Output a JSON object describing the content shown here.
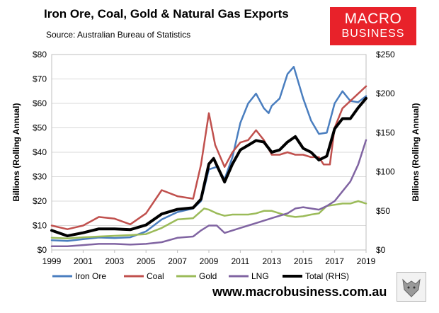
{
  "header": {
    "title": "Iron Ore, Coal, Gold & Natural Gas Exports",
    "source": "Source: Australian Bureau of Statistics",
    "logo_line1": "MACRO",
    "logo_line2": "BUSINESS",
    "website": "www.macrobusiness.com.au"
  },
  "colors": {
    "iron_ore": "#4a7ebf",
    "coal": "#c0504d",
    "gold": "#9bbb59",
    "lng": "#8064a2",
    "total": "#000000",
    "logo": "#e8222a"
  },
  "chart_data": {
    "type": "line",
    "title": "Iron Ore, Coal, Gold & Natural Gas Exports",
    "xlabel": "",
    "ylabel": "Billions (Rolling Annual)",
    "y2label": "Billions (Rolling Annual)",
    "xlim": [
      1999,
      2019
    ],
    "ylim": [
      0,
      80
    ],
    "y2lim": [
      0,
      250
    ],
    "x_ticks": [
      "1999",
      "2001",
      "2003",
      "2005",
      "2007",
      "2009",
      "2011",
      "2013",
      "2015",
      "2017",
      "2019"
    ],
    "y_ticks": [
      "$0",
      "$10",
      "$20",
      "$30",
      "$40",
      "$50",
      "$60",
      "$70",
      "$80"
    ],
    "y2_ticks": [
      "$0",
      "$50",
      "$100",
      "$150",
      "$200",
      "$250"
    ],
    "grid": true,
    "legend_position": "bottom",
    "series": [
      {
        "name": "Iron Ore",
        "axis": "left",
        "points": [
          [
            1999,
            4
          ],
          [
            2000,
            3.7
          ],
          [
            2001,
            4.4
          ],
          [
            2002,
            5.1
          ],
          [
            2003,
            4.9
          ],
          [
            2004,
            5.2
          ],
          [
            2005,
            7.6
          ],
          [
            2006,
            12.5
          ],
          [
            2007,
            15.5
          ],
          [
            2008,
            17
          ],
          [
            2008.5,
            20
          ],
          [
            2009,
            33
          ],
          [
            2009.5,
            34
          ],
          [
            2010,
            29
          ],
          [
            2010.5,
            38
          ],
          [
            2011,
            52
          ],
          [
            2011.5,
            60
          ],
          [
            2012,
            64
          ],
          [
            2012.5,
            58
          ],
          [
            2012.8,
            56
          ],
          [
            2013,
            59
          ],
          [
            2013.5,
            62
          ],
          [
            2014,
            72
          ],
          [
            2014.4,
            75
          ],
          [
            2015,
            62
          ],
          [
            2015.5,
            53
          ],
          [
            2016,
            47.5
          ],
          [
            2016.5,
            48
          ],
          [
            2017,
            60
          ],
          [
            2017.5,
            65
          ],
          [
            2018,
            61
          ],
          [
            2018.5,
            60.5
          ],
          [
            2019,
            63
          ]
        ]
      },
      {
        "name": "Coal",
        "axis": "left",
        "points": [
          [
            1999,
            10
          ],
          [
            2000,
            8.5
          ],
          [
            2001,
            10
          ],
          [
            2002,
            13.5
          ],
          [
            2003,
            12.8
          ],
          [
            2004,
            10.5
          ],
          [
            2005,
            15
          ],
          [
            2006,
            24.5
          ],
          [
            2007,
            22
          ],
          [
            2008,
            21
          ],
          [
            2008.5,
            35
          ],
          [
            2009,
            56
          ],
          [
            2009.4,
            43
          ],
          [
            2010,
            34
          ],
          [
            2010.5,
            40
          ],
          [
            2011,
            44
          ],
          [
            2011.5,
            45
          ],
          [
            2012,
            49
          ],
          [
            2012.5,
            45
          ],
          [
            2013,
            39
          ],
          [
            2013.5,
            39
          ],
          [
            2014,
            40
          ],
          [
            2014.5,
            39
          ],
          [
            2015,
            39
          ],
          [
            2015.5,
            38
          ],
          [
            2016,
            38
          ],
          [
            2016.3,
            35
          ],
          [
            2016.7,
            35
          ],
          [
            2017,
            50
          ],
          [
            2017.5,
            58
          ],
          [
            2018,
            61
          ],
          [
            2018.5,
            64
          ],
          [
            2019,
            67
          ]
        ]
      },
      {
        "name": "Gold",
        "axis": "left",
        "points": [
          [
            1999,
            5
          ],
          [
            2000,
            4.7
          ],
          [
            2001,
            5.2
          ],
          [
            2002,
            5.5
          ],
          [
            2003,
            5.8
          ],
          [
            2004,
            6.1
          ],
          [
            2005,
            6.5
          ],
          [
            2006,
            9
          ],
          [
            2007,
            12.5
          ],
          [
            2008,
            13
          ],
          [
            2008.7,
            17
          ],
          [
            2009,
            16.5
          ],
          [
            2009.5,
            15
          ],
          [
            2010,
            14
          ],
          [
            2010.5,
            14.5
          ],
          [
            2011,
            14.5
          ],
          [
            2011.5,
            14.5
          ],
          [
            2012,
            15
          ],
          [
            2012.5,
            16
          ],
          [
            2013,
            16
          ],
          [
            2013.5,
            15
          ],
          [
            2014,
            14
          ],
          [
            2014.5,
            13.5
          ],
          [
            2015,
            13.8
          ],
          [
            2015.5,
            14.5
          ],
          [
            2016,
            15
          ],
          [
            2016.5,
            18
          ],
          [
            2017,
            18.5
          ],
          [
            2017.5,
            19
          ],
          [
            2018,
            19
          ],
          [
            2018.5,
            20
          ],
          [
            2019,
            19
          ]
        ]
      },
      {
        "name": "LNG",
        "axis": "left",
        "points": [
          [
            1999,
            1.5
          ],
          [
            2000,
            1.5
          ],
          [
            2001,
            2
          ],
          [
            2002,
            2.5
          ],
          [
            2003,
            2.5
          ],
          [
            2004,
            2.2
          ],
          [
            2005,
            2.5
          ],
          [
            2006,
            3.2
          ],
          [
            2007,
            5
          ],
          [
            2008,
            5.5
          ],
          [
            2008.5,
            8
          ],
          [
            2009,
            10
          ],
          [
            2009.5,
            10
          ],
          [
            2010,
            7
          ],
          [
            2010.5,
            8
          ],
          [
            2011,
            9
          ],
          [
            2011.5,
            10
          ],
          [
            2012,
            11
          ],
          [
            2012.5,
            12
          ],
          [
            2013,
            13
          ],
          [
            2013.5,
            14
          ],
          [
            2014,
            15
          ],
          [
            2014.5,
            17
          ],
          [
            2015,
            17.5
          ],
          [
            2015.5,
            17
          ],
          [
            2016,
            16.5
          ],
          [
            2016.5,
            18
          ],
          [
            2017,
            20
          ],
          [
            2017.5,
            24
          ],
          [
            2018,
            28
          ],
          [
            2018.5,
            35
          ],
          [
            2019,
            45
          ]
        ]
      },
      {
        "name": "Total (RHS)",
        "axis": "right",
        "points": [
          [
            1999,
            25
          ],
          [
            2000,
            18
          ],
          [
            2001,
            22
          ],
          [
            2002,
            27
          ],
          [
            2003,
            27
          ],
          [
            2004,
            26
          ],
          [
            2005,
            32
          ],
          [
            2006,
            46
          ],
          [
            2007,
            52
          ],
          [
            2008,
            54
          ],
          [
            2008.5,
            65
          ],
          [
            2009,
            110
          ],
          [
            2009.3,
            117
          ],
          [
            2009.7,
            100
          ],
          [
            2010,
            87
          ],
          [
            2010.5,
            110
          ],
          [
            2011,
            128
          ],
          [
            2011.5,
            134
          ],
          [
            2012,
            140
          ],
          [
            2012.5,
            138
          ],
          [
            2013,
            125
          ],
          [
            2013.5,
            128
          ],
          [
            2014,
            138
          ],
          [
            2014.5,
            145
          ],
          [
            2015,
            130
          ],
          [
            2015.5,
            125
          ],
          [
            2016,
            115
          ],
          [
            2016.5,
            120
          ],
          [
            2017,
            155
          ],
          [
            2017.5,
            168
          ],
          [
            2018,
            168
          ],
          [
            2018.5,
            182
          ],
          [
            2019,
            194
          ]
        ]
      }
    ]
  }
}
